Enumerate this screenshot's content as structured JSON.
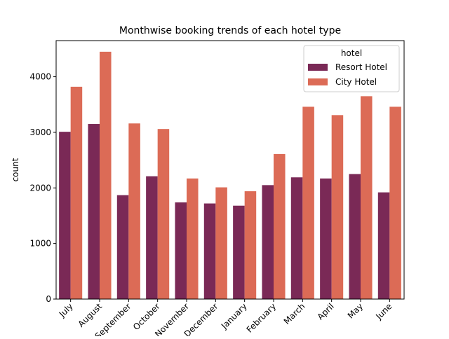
{
  "chart_data": {
    "type": "bar",
    "title": "Monthwise booking trends of each hotel type",
    "xlabel": "",
    "ylabel": "count",
    "ylim": [
      0,
      4650
    ],
    "yticks": [
      0,
      1000,
      2000,
      3000,
      4000
    ],
    "categories": [
      "July",
      "August",
      "September",
      "October",
      "November",
      "December",
      "January",
      "February",
      "March",
      "April",
      "May",
      "June"
    ],
    "legend": {
      "title": "hotel",
      "placement": "top-right"
    },
    "grid": false,
    "series": [
      {
        "name": "Resort Hotel",
        "color": "#7a2956",
        "values": [
          3010,
          3150,
          1870,
          2210,
          1740,
          1720,
          1680,
          2050,
          2190,
          2170,
          2250,
          1920
        ]
      },
      {
        "name": "City Hotel",
        "color": "#dc6b56",
        "values": [
          3820,
          4450,
          3160,
          3060,
          2170,
          2010,
          1940,
          2610,
          3460,
          3310,
          3650,
          3460
        ]
      }
    ]
  }
}
